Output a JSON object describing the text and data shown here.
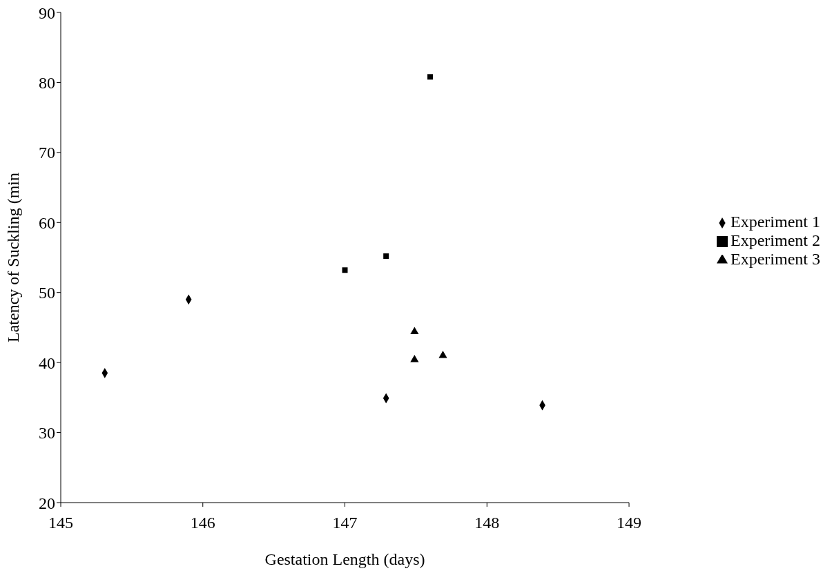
{
  "chart_data": {
    "type": "scatter",
    "xlabel": "Gestation Length (days)",
    "ylabel": "Latency of Suckling (min",
    "xlim": [
      145,
      149
    ],
    "xticks": [
      145,
      146,
      147,
      148,
      149
    ],
    "ylim": [
      20,
      90
    ],
    "yticks": [
      20,
      30,
      40,
      50,
      60,
      70,
      80,
      90
    ],
    "legend": "right",
    "series": [
      {
        "name": "Experiment 1",
        "color": "#000000",
        "marker": "diamond",
        "x": [
          145.31,
          145.9,
          147.29,
          148.39
        ],
        "values": [
          38.5,
          49,
          34.9,
          33.9
        ]
      },
      {
        "name": "Experiment 2",
        "color": "#000000",
        "marker": "square",
        "x": [
          147,
          147.29,
          147.6
        ],
        "values": [
          53.2,
          55.2,
          80.8
        ]
      },
      {
        "name": "Experiment 3",
        "color": "#000000",
        "marker": "triangle",
        "x": [
          147.49,
          147.49,
          147.69
        ],
        "values": [
          44.4,
          40.4,
          41
        ]
      }
    ]
  }
}
